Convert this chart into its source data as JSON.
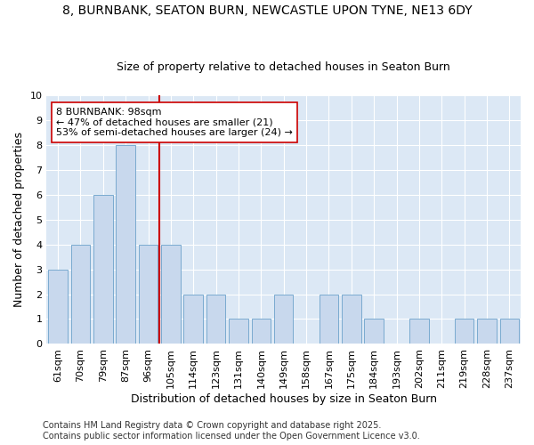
{
  "title": "8, BURNBANK, SEATON BURN, NEWCASTLE UPON TYNE, NE13 6DY",
  "subtitle": "Size of property relative to detached houses in Seaton Burn",
  "xlabel": "Distribution of detached houses by size in Seaton Burn",
  "ylabel": "Number of detached properties",
  "categories": [
    "61sqm",
    "70sqm",
    "79sqm",
    "87sqm",
    "96sqm",
    "105sqm",
    "114sqm",
    "123sqm",
    "131sqm",
    "140sqm",
    "149sqm",
    "158sqm",
    "167sqm",
    "175sqm",
    "184sqm",
    "193sqm",
    "202sqm",
    "211sqm",
    "219sqm",
    "228sqm",
    "237sqm"
  ],
  "values": [
    3,
    4,
    6,
    8,
    4,
    4,
    2,
    2,
    1,
    1,
    2,
    0,
    2,
    2,
    1,
    0,
    1,
    0,
    1,
    1,
    1
  ],
  "bar_color": "#c8d8ed",
  "bar_edge_color": "#7aaad0",
  "ref_line_index": 4.5,
  "ref_line_color": "#cc0000",
  "annotation_text": "8 BURNBANK: 98sqm\n← 47% of detached houses are smaller (21)\n53% of semi-detached houses are larger (24) →",
  "annotation_box_color": "#ffffff",
  "annotation_box_edge": "#cc0000",
  "ylim": [
    0,
    10
  ],
  "yticks": [
    0,
    1,
    2,
    3,
    4,
    5,
    6,
    7,
    8,
    9,
    10
  ],
  "footer1": "Contains HM Land Registry data © Crown copyright and database right 2025.",
  "footer2": "Contains public sector information licensed under the Open Government Licence v3.0.",
  "fig_bg_color": "#ffffff",
  "plot_bg_color": "#dce8f5",
  "grid_color": "#ffffff",
  "title_fontsize": 10,
  "subtitle_fontsize": 9,
  "axis_label_fontsize": 9,
  "tick_fontsize": 8,
  "annotation_fontsize": 8,
  "footer_fontsize": 7
}
